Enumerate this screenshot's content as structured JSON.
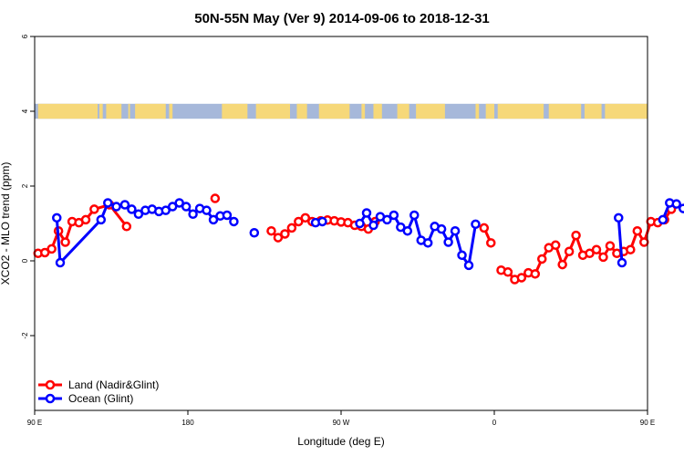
{
  "chart_data": {
    "type": "line",
    "title": "50N-55N May (Ver 9)   2014-09-06 to 2018-12-31",
    "xlabel": "Longitude (deg E)",
    "ylabel": "XCO2 - MLO trend (ppm)",
    "x_axis": {
      "range": [
        90,
        450
      ],
      "ticks": [
        90,
        180,
        270,
        360,
        450
      ],
      "tick_labels": [
        "90 E",
        "180",
        "90 W",
        "0",
        "90 E"
      ]
    },
    "y_axis": {
      "range": [
        -4,
        6
      ],
      "ticks": [
        -2,
        0,
        2,
        4,
        6
      ],
      "tick_labels": [
        "-2",
        "0",
        "2",
        "4",
        "6"
      ]
    },
    "grid": false,
    "legend": {
      "placement": "bottom-left"
    },
    "land_ocean_strip": {
      "y_range": [
        3.8,
        4.2
      ],
      "ocean_color": "#a6b8da",
      "land_color": "#f6d879",
      "land_spans": [
        [
          92,
          127
        ],
        [
          128,
          130
        ],
        [
          132,
          141
        ],
        [
          145,
          146
        ],
        [
          149,
          167
        ],
        [
          169,
          171
        ],
        [
          200,
          215
        ],
        [
          220,
          240
        ],
        [
          244,
          250
        ],
        [
          257,
          275
        ],
        [
          282,
          284
        ],
        [
          289,
          294
        ],
        [
          303,
          310
        ],
        [
          314,
          331
        ],
        [
          349,
          351
        ],
        [
          355,
          360
        ],
        [
          362,
          389
        ],
        [
          392,
          411
        ],
        [
          413,
          423
        ],
        [
          425,
          450
        ]
      ]
    },
    "series": [
      {
        "name": "Land (Nadir&Glint)",
        "color": "#ff0000",
        "points": [
          [
            92,
            0.2
          ],
          [
            96,
            0.22
          ],
          [
            100,
            0.32
          ],
          [
            104,
            0.8
          ],
          [
            108,
            0.5
          ],
          [
            112,
            1.05
          ],
          [
            116,
            1.02
          ],
          [
            120,
            1.1
          ],
          [
            125,
            1.38
          ],
          [
            134,
            1.5
          ],
          [
            144,
            0.92
          ],
          [
            null,
            null
          ],
          [
            196,
            1.67
          ],
          [
            null,
            null
          ],
          [
            229,
            0.8
          ],
          [
            233,
            0.62
          ],
          [
            237,
            0.72
          ],
          [
            241,
            0.88
          ],
          [
            245,
            1.05
          ],
          [
            249,
            1.15
          ],
          [
            253,
            1.05
          ],
          [
            258,
            1.07
          ],
          [
            262,
            1.09
          ],
          [
            266,
            1.07
          ],
          [
            270,
            1.04
          ],
          [
            274,
            1.02
          ],
          [
            278,
            0.95
          ],
          [
            282,
            0.92
          ],
          [
            286,
            0.85
          ],
          [
            290,
            1.05
          ],
          [
            null,
            null
          ],
          [
            354,
            0.88
          ],
          [
            358,
            0.48
          ],
          [
            null,
            null
          ],
          [
            364,
            -0.25
          ],
          [
            368,
            -0.3
          ],
          [
            372,
            -0.5
          ],
          [
            376,
            -0.45
          ],
          [
            380,
            -0.32
          ],
          [
            384,
            -0.35
          ],
          [
            388,
            0.05
          ],
          [
            392,
            0.35
          ],
          [
            396,
            0.42
          ],
          [
            400,
            -0.1
          ],
          [
            404,
            0.25
          ],
          [
            408,
            0.68
          ],
          [
            412,
            0.15
          ],
          [
            416,
            0.2
          ],
          [
            420,
            0.3
          ],
          [
            424,
            0.1
          ],
          [
            428,
            0.4
          ],
          [
            432,
            0.2
          ],
          [
            436,
            0.25
          ],
          [
            440,
            0.3
          ],
          [
            444,
            0.8
          ],
          [
            448,
            0.5
          ],
          [
            452,
            1.05
          ],
          [
            456,
            1.02
          ],
          [
            460,
            1.1
          ],
          [
            464,
            1.38
          ],
          [
            null,
            null
          ],
          [
            479,
            0.92
          ]
        ]
      },
      {
        "name": "Ocean (Glint)",
        "color": "#0000ff",
        "points": [
          [
            103,
            1.15
          ],
          [
            105,
            -0.05
          ],
          [
            129,
            1.1
          ],
          [
            133,
            1.55
          ],
          [
            138,
            1.45
          ],
          [
            143,
            1.5
          ],
          [
            147,
            1.38
          ],
          [
            151,
            1.25
          ],
          [
            155,
            1.35
          ],
          [
            159,
            1.38
          ],
          [
            163,
            1.32
          ],
          [
            167,
            1.35
          ],
          [
            171,
            1.45
          ],
          [
            175,
            1.55
          ],
          [
            179,
            1.45
          ],
          [
            183,
            1.25
          ],
          [
            187,
            1.4
          ],
          [
            191,
            1.35
          ],
          [
            195,
            1.1
          ],
          [
            199,
            1.2
          ],
          [
            203,
            1.22
          ],
          [
            207,
            1.05
          ],
          [
            null,
            null
          ],
          [
            219,
            0.75
          ],
          [
            null,
            null
          ],
          [
            255,
            1.02
          ],
          [
            259,
            1.05
          ],
          [
            null,
            null
          ],
          [
            281,
            1.0
          ],
          [
            285,
            1.28
          ],
          [
            289,
            0.95
          ],
          [
            293,
            1.18
          ],
          [
            297,
            1.1
          ],
          [
            301,
            1.22
          ],
          [
            305,
            0.9
          ],
          [
            309,
            0.8
          ],
          [
            313,
            1.22
          ],
          [
            317,
            0.55
          ],
          [
            321,
            0.48
          ],
          [
            325,
            0.92
          ],
          [
            329,
            0.85
          ],
          [
            333,
            0.5
          ],
          [
            337,
            0.8
          ],
          [
            341,
            0.15
          ],
          [
            345,
            -0.12
          ],
          [
            349,
            0.98
          ],
          [
            null,
            null
          ],
          [
            433,
            1.15
          ],
          [
            435,
            -0.05
          ],
          [
            null,
            null
          ],
          [
            459,
            1.1
          ],
          [
            463,
            1.55
          ],
          [
            467,
            1.52
          ],
          [
            471,
            1.4
          ],
          [
            475,
            1.5
          ],
          [
            479,
            1.4
          ],
          [
            483,
            1.25
          ],
          [
            487,
            1.35
          ],
          [
            491,
            1.38
          ]
        ]
      }
    ]
  }
}
